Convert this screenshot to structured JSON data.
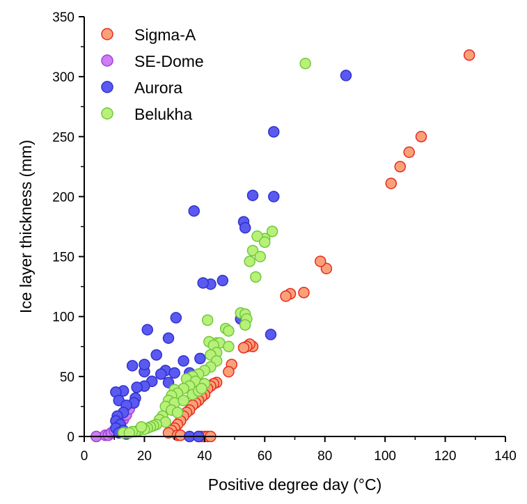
{
  "chart_data": {
    "type": "scatter",
    "title": "",
    "xlabel": "Positive degree day (°C)",
    "ylabel": "Ice layer thickness (mm)",
    "xlim": [
      0,
      140
    ],
    "ylim": [
      0,
      350
    ],
    "x_ticks": [
      "0",
      "20",
      "40",
      "60",
      "80",
      "100",
      "120",
      "140"
    ],
    "y_ticks": [
      "0",
      "50",
      "100",
      "150",
      "200",
      "250",
      "300",
      "350"
    ],
    "grid": false,
    "legend_position": "top-left",
    "series": [
      {
        "name": "Sigma-A",
        "fill": "#f9a27a",
        "stroke": "#e8281e",
        "points": [
          [
            128,
            318
          ],
          [
            112,
            250
          ],
          [
            108,
            237
          ],
          [
            105,
            225
          ],
          [
            102,
            211
          ],
          [
            80.5,
            140
          ],
          [
            78.5,
            146
          ],
          [
            73,
            120
          ],
          [
            68.5,
            119
          ],
          [
            67,
            117
          ],
          [
            56,
            75
          ],
          [
            55,
            77
          ],
          [
            54,
            75
          ],
          [
            53,
            74
          ],
          [
            49,
            60
          ],
          [
            48,
            54
          ],
          [
            44,
            45
          ],
          [
            43,
            44
          ],
          [
            42,
            42
          ],
          [
            41,
            40
          ],
          [
            40,
            35
          ],
          [
            39,
            33
          ],
          [
            38,
            30
          ],
          [
            37,
            28
          ],
          [
            36,
            26
          ],
          [
            35,
            22
          ],
          [
            34,
            20
          ],
          [
            33,
            17
          ],
          [
            32,
            13
          ],
          [
            31,
            10
          ],
          [
            30,
            7
          ],
          [
            29,
            5
          ],
          [
            28,
            3
          ],
          [
            31,
            1
          ],
          [
            32,
            1
          ],
          [
            38,
            0
          ],
          [
            39,
            0
          ],
          [
            40,
            0
          ],
          [
            41,
            0
          ],
          [
            42,
            0
          ]
        ]
      },
      {
        "name": "SE-Dome",
        "fill": "#cc7ef2",
        "stroke": "#a040d8",
        "points": [
          [
            4,
            0
          ],
          [
            7,
            1
          ],
          [
            8,
            1
          ],
          [
            9,
            3
          ],
          [
            10,
            5
          ],
          [
            11,
            8
          ],
          [
            12,
            11
          ],
          [
            13,
            14
          ],
          [
            14,
            18
          ],
          [
            15,
            23
          ]
        ]
      },
      {
        "name": "Aurora",
        "fill": "#5a5af0",
        "stroke": "#3030d0",
        "points": [
          [
            87,
            301
          ],
          [
            63,
            254
          ],
          [
            63,
            200
          ],
          [
            56,
            201
          ],
          [
            53,
            179
          ],
          [
            53.5,
            174
          ],
          [
            36.5,
            188
          ],
          [
            46,
            130
          ],
          [
            42,
            127
          ],
          [
            39.5,
            128
          ],
          [
            62,
            85
          ],
          [
            52,
            98
          ],
          [
            21,
            89
          ],
          [
            30.5,
            99
          ],
          [
            28,
            82
          ],
          [
            35,
            53
          ],
          [
            33,
            63
          ],
          [
            38.5,
            65
          ],
          [
            24,
            68
          ],
          [
            27,
            55
          ],
          [
            25.5,
            52
          ],
          [
            30,
            53
          ],
          [
            28,
            45
          ],
          [
            22.5,
            46
          ],
          [
            20,
            54
          ],
          [
            20,
            60
          ],
          [
            16,
            59
          ],
          [
            20,
            42
          ],
          [
            17.5,
            41
          ],
          [
            17,
            32
          ],
          [
            16.5,
            28
          ],
          [
            13,
            38
          ],
          [
            10.5,
            37
          ],
          [
            11.5,
            30
          ],
          [
            14,
            26
          ],
          [
            13,
            20
          ],
          [
            11,
            17
          ],
          [
            10.5,
            13
          ],
          [
            12,
            10
          ],
          [
            10.5,
            7
          ],
          [
            13,
            5
          ],
          [
            11.5,
            3
          ],
          [
            14,
            2
          ],
          [
            35,
            0
          ],
          [
            38,
            0
          ]
        ]
      },
      {
        "name": "Belukha",
        "fill": "#b8f07a",
        "stroke": "#6fc93a",
        "points": [
          [
            73.5,
            311
          ],
          [
            62.5,
            171
          ],
          [
            60,
            165
          ],
          [
            57.5,
            167
          ],
          [
            60,
            162
          ],
          [
            56,
            155
          ],
          [
            58.5,
            150
          ],
          [
            55,
            146
          ],
          [
            57,
            133
          ],
          [
            52,
            103
          ],
          [
            53.5,
            102
          ],
          [
            54,
            98
          ],
          [
            41,
            97
          ],
          [
            53.5,
            93
          ],
          [
            47,
            90
          ],
          [
            48,
            88
          ],
          [
            44,
            78
          ],
          [
            45,
            78
          ],
          [
            41.5,
            79
          ],
          [
            43,
            76
          ],
          [
            48,
            75
          ],
          [
            44,
            70
          ],
          [
            42,
            68
          ],
          [
            44,
            63
          ],
          [
            42,
            58
          ],
          [
            40,
            55
          ],
          [
            38,
            52
          ],
          [
            36,
            50
          ],
          [
            34,
            48
          ],
          [
            37,
            46
          ],
          [
            40,
            44
          ],
          [
            35,
            42
          ],
          [
            33,
            40
          ],
          [
            30,
            39
          ],
          [
            31,
            36
          ],
          [
            29,
            34
          ],
          [
            28,
            30
          ],
          [
            30,
            28
          ],
          [
            33,
            30
          ],
          [
            27,
            25
          ],
          [
            29,
            22
          ],
          [
            31,
            20
          ],
          [
            26,
            17
          ],
          [
            25,
            14
          ],
          [
            27,
            12
          ],
          [
            24,
            10
          ],
          [
            23,
            9
          ],
          [
            22,
            8
          ],
          [
            21,
            7
          ],
          [
            20,
            6
          ],
          [
            18,
            5
          ],
          [
            17,
            4
          ],
          [
            16,
            4
          ],
          [
            14,
            3
          ],
          [
            13,
            3
          ],
          [
            15,
            3
          ],
          [
            19,
            8
          ],
          [
            36,
            35
          ],
          [
            38,
            38
          ],
          [
            39,
            40
          ]
        ]
      }
    ]
  }
}
